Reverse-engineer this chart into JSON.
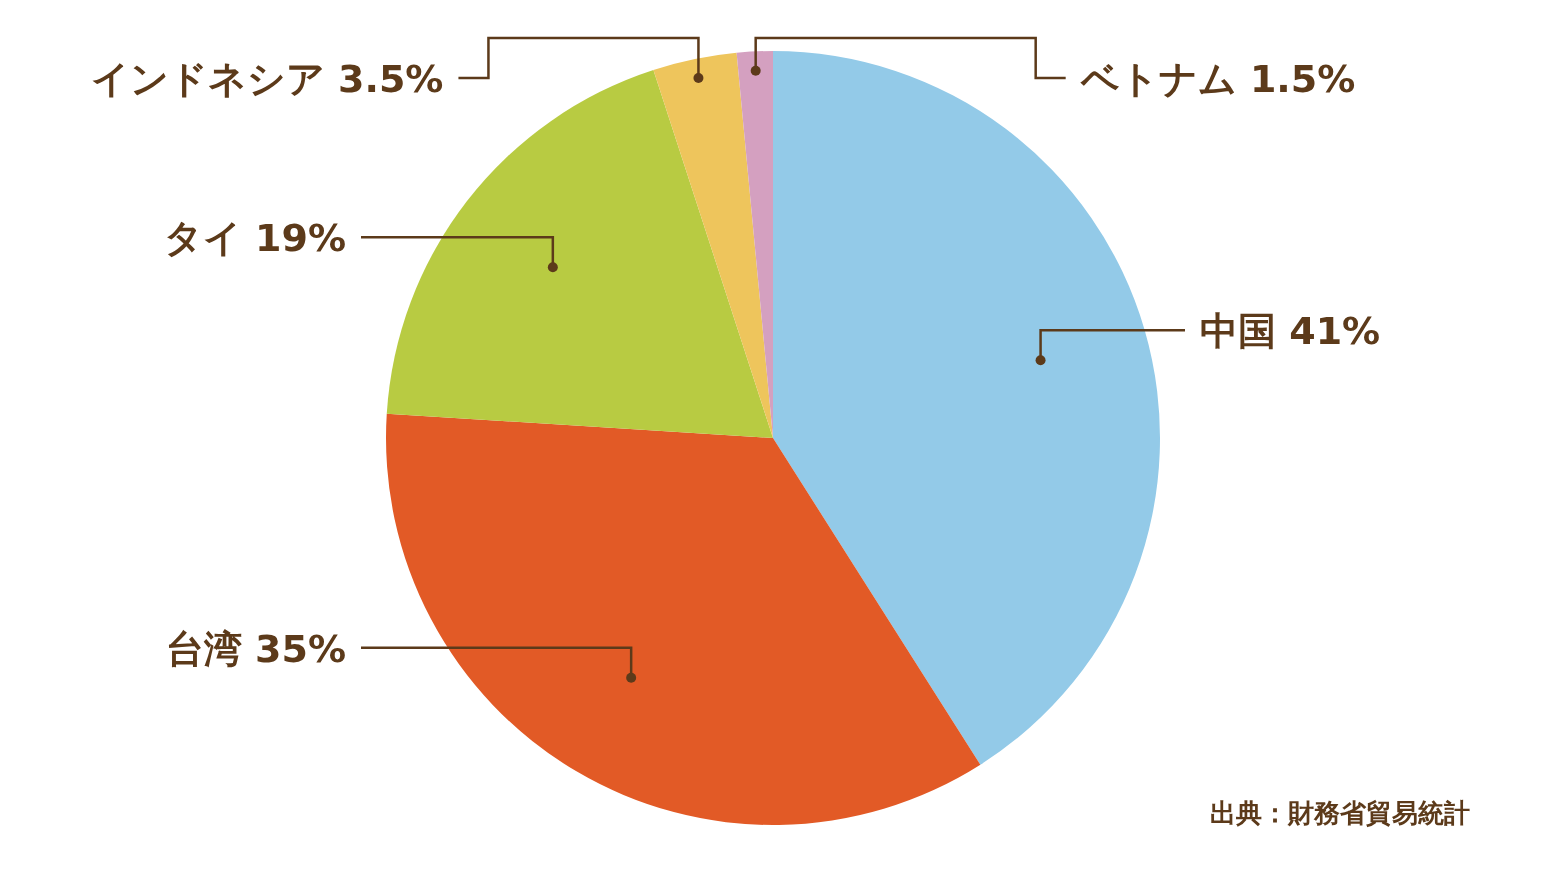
{
  "chart_data": {
    "type": "pie",
    "categories": [
      "中国",
      "台湾",
      "タイ",
      "インドネシア",
      "ベトナム"
    ],
    "values": [
      41,
      35,
      19,
      3.5,
      1.5
    ],
    "colors": [
      "#93cae8",
      "#e25a26",
      "#b8cb42",
      "#eec55c",
      "#d4a0c0"
    ],
    "value_labels": [
      "41%",
      "35%",
      "19%",
      "3.5%",
      "1.5%"
    ],
    "annotations": [
      "出典：財務省貿易統計"
    ]
  }
}
